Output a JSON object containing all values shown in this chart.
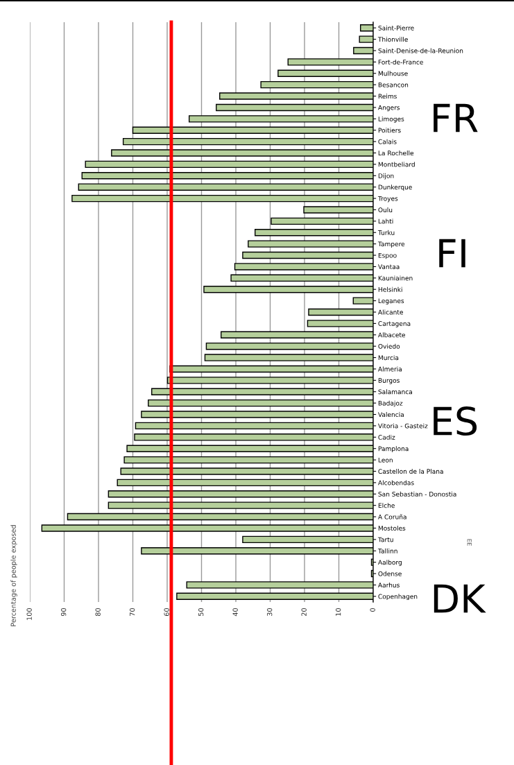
{
  "chart_data": {
    "type": "bar",
    "orientation": "horizontal",
    "ylabel": "Percentage of people exposed",
    "categories": [
      "Saint-Pierre",
      "Thionville",
      "Saint-Denise-de-la-Reunion",
      "Fort-de-France",
      "Mulhouse",
      "Besancon",
      "Reims",
      "Angers",
      "Limoges",
      "Poitiers",
      "Calais",
      "La Rochelle",
      "Montbeliard",
      "Dijon",
      "Dunkerque",
      "Troyes",
      "Oulu",
      "Lahti",
      "Turku",
      "Tampere",
      "Espoo",
      "Vantaa",
      "Kauniainen",
      "Helsinki",
      "Leganes",
      "Alicante",
      "Cartagena",
      "Albacete",
      "Oviedo",
      "Murcia",
      "Almeria",
      "Burgos",
      "Salamanca",
      "Badajoz",
      "Valencia",
      "Vitoria - Gasteiz",
      "Cadiz",
      "Pamplona",
      "Leon",
      "Castellon de la Plana",
      "Alcobendas",
      "San Sebastian - Donostia",
      "Elche",
      "A Coruña",
      "Mostoles",
      "Tartu",
      "Tallinn",
      "Aalborg",
      "Odense",
      "Aarhus",
      "Copenhagen"
    ],
    "values": [
      3.7,
      4,
      5.7,
      24.8,
      27.7,
      32.7,
      44.7,
      45.7,
      53.6,
      70,
      72.8,
      76.2,
      83.8,
      84.8,
      85.8,
      87.7,
      20.2,
      29.7,
      34.4,
      36.4,
      38,
      40.3,
      41.4,
      49.3,
      5.8,
      18.8,
      19.1,
      44.3,
      48.6,
      49,
      59.2,
      59.9,
      64.5,
      65.5,
      67.5,
      69.2,
      69.5,
      71.7,
      72.5,
      73.5,
      74.5,
      77.1,
      77.1,
      89,
      96.5,
      38,
      67.5,
      0.5,
      0.5,
      54.3,
      57.2
    ],
    "color": "#b5cf9b",
    "xlim": [
      100,
      0
    ],
    "xticks": [
      100,
      90,
      80,
      70,
      60,
      50,
      40,
      30,
      20,
      10,
      0
    ],
    "grid": "x",
    "ref_lines": [
      {
        "axis": "x",
        "value": 58.8,
        "color": "#ff0000"
      }
    ],
    "annotations": [
      "FR",
      "FI",
      "ES",
      "EE",
      "DK"
    ]
  }
}
